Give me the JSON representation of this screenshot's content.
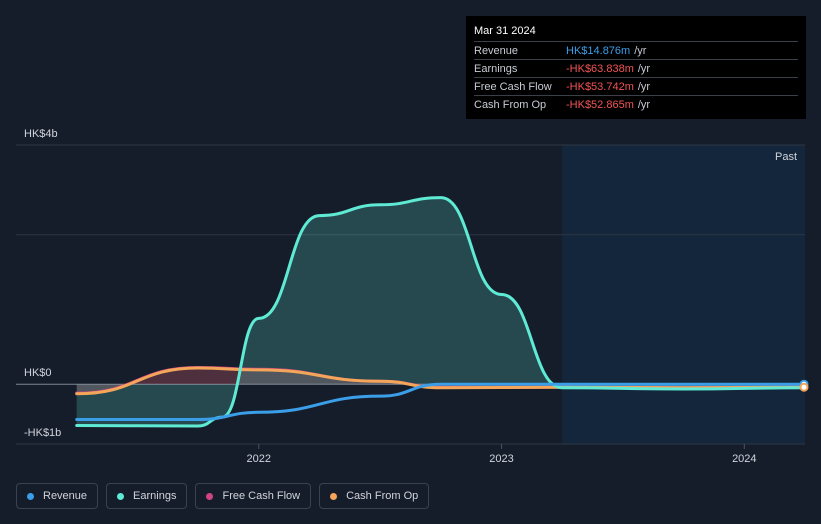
{
  "tooltip": {
    "date": "Mar 31 2024",
    "rows": [
      {
        "label": "Revenue",
        "value": "HK$14.876m",
        "unit": "/yr",
        "color": "#3b9ee8"
      },
      {
        "label": "Earnings",
        "value": "-HK$63.838m",
        "unit": "/yr",
        "color": "#f25454"
      },
      {
        "label": "Free Cash Flow",
        "value": "-HK$53.742m",
        "unit": "/yr",
        "color": "#f25454"
      },
      {
        "label": "Cash From Op",
        "value": "-HK$52.865m",
        "unit": "/yr",
        "color": "#f25454"
      }
    ]
  },
  "legend": [
    {
      "label": "Revenue",
      "color": "#3b9ee8"
    },
    {
      "label": "Earnings",
      "color": "#5eead4"
    },
    {
      "label": "Free Cash Flow",
      "color": "#d0457f"
    },
    {
      "label": "Cash From Op",
      "color": "#f3a65a"
    }
  ],
  "chart_data": {
    "type": "line",
    "title": "",
    "xlabel": "",
    "ylabel": "",
    "ylim": [
      -1,
      4
    ],
    "y_ticks": [
      {
        "value": 4,
        "label": "HK$4b"
      },
      {
        "value": 0,
        "label": "HK$0"
      },
      {
        "value": -1,
        "label": "-HK$1b"
      }
    ],
    "x_ticks": [
      {
        "value": 2022,
        "label": "2022"
      },
      {
        "value": 2023,
        "label": "2023"
      },
      {
        "value": 2024,
        "label": "2024"
      }
    ],
    "xlim": [
      2021.0,
      2024.25
    ],
    "past_start": 2023.25,
    "past_label": "Past",
    "series": [
      {
        "name": "Revenue",
        "color": "#3b9ee8",
        "points": [
          [
            2021.25,
            -0.59
          ],
          [
            2021.75,
            -0.59
          ],
          [
            2022.0,
            -0.47
          ],
          [
            2022.5,
            -0.2
          ],
          [
            2022.75,
            0.0
          ],
          [
            2023.25,
            0.0
          ],
          [
            2023.75,
            0.0
          ],
          [
            2024.25,
            0.0
          ]
        ]
      },
      {
        "name": "Earnings",
        "color": "#5eead4",
        "points": [
          [
            2021.25,
            -0.69
          ],
          [
            2021.75,
            -0.7
          ],
          [
            2021.85,
            -0.55
          ],
          [
            2022.0,
            1.1
          ],
          [
            2022.25,
            2.82
          ],
          [
            2022.5,
            3.0
          ],
          [
            2022.75,
            3.12
          ],
          [
            2023.0,
            1.5
          ],
          [
            2023.25,
            -0.06
          ],
          [
            2023.75,
            -0.08
          ],
          [
            2024.25,
            -0.06
          ]
        ]
      },
      {
        "name": "Free Cash Flow",
        "color": "#d0457f",
        "points": [
          [
            2021.25,
            -0.15
          ],
          [
            2021.75,
            0.28
          ],
          [
            2022.0,
            0.25
          ],
          [
            2022.5,
            0.05
          ],
          [
            2022.75,
            -0.05
          ],
          [
            2023.25,
            -0.05
          ],
          [
            2023.75,
            -0.06
          ],
          [
            2024.25,
            -0.05
          ]
        ]
      },
      {
        "name": "Cash From Op",
        "color": "#f3a65a",
        "points": [
          [
            2021.25,
            -0.16
          ],
          [
            2021.75,
            0.27
          ],
          [
            2022.0,
            0.24
          ],
          [
            2022.5,
            0.05
          ],
          [
            2022.75,
            -0.06
          ],
          [
            2023.25,
            -0.05
          ],
          [
            2023.75,
            -0.06
          ],
          [
            2024.25,
            -0.05
          ]
        ]
      }
    ]
  }
}
